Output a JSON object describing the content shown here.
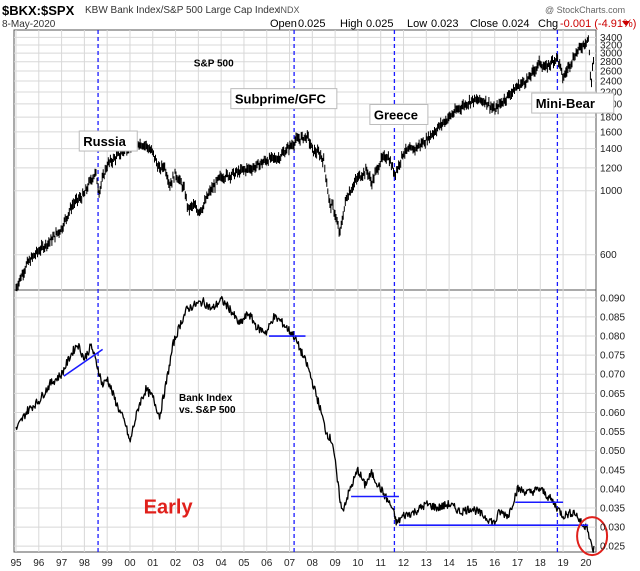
{
  "header": {
    "symbol": "$BKX:$SPX",
    "name": "KBW Bank Index/S&P 500 Large Cap Index",
    "exchange": "INDX",
    "date": "8-May-2020",
    "open_label": "Open",
    "open": "0.025",
    "high_label": "High",
    "high": "0.025",
    "low_label": "Low",
    "low": "0.023",
    "close_label": "Close",
    "close": "0.024",
    "chg_label": "Chg",
    "chg": "-0.001 (-4.91%)",
    "watermark": "@ StockCharts.com"
  },
  "colors": {
    "price": "#000000",
    "event_line": "#1a1aff",
    "trend_line": "#1a1aff",
    "annotation_red": "#e0201b",
    "grid": "#d8d8d8"
  },
  "chart_data": [
    {
      "type": "line",
      "panel": "top",
      "title": "S&P 500",
      "scale": "log",
      "xlim": [
        1995,
        2020.4
      ],
      "ylim": [
        460,
        3550
      ],
      "y_ticks": [
        600,
        1000,
        1200,
        1400,
        1600,
        1800,
        2000,
        2200,
        2400,
        2600,
        2800,
        3000,
        3200,
        3400
      ],
      "x": [
        1995.0,
        1995.5,
        1996.0,
        1996.5,
        1997.0,
        1997.5,
        1998.0,
        1998.3,
        1998.5,
        1998.65,
        1998.8,
        1999.0,
        1999.5,
        2000.0,
        2000.25,
        2000.7,
        2001.0,
        2001.3,
        2001.5,
        2001.75,
        2002.0,
        2002.4,
        2002.55,
        2002.8,
        2003.0,
        2003.2,
        2003.5,
        2004.0,
        2004.5,
        2005.0,
        2005.5,
        2006.0,
        2006.5,
        2007.0,
        2007.3,
        2007.6,
        2007.8,
        2008.0,
        2008.3,
        2008.5,
        2008.75,
        2008.9,
        2009.0,
        2009.2,
        2009.5,
        2010.0,
        2010.4,
        2010.6,
        2011.0,
        2011.3,
        2011.6,
        2011.75,
        2012.0,
        2012.5,
        2013.0,
        2013.5,
        2014.0,
        2014.5,
        2015.0,
        2015.6,
        2016.0,
        2016.5,
        2017.0,
        2017.5,
        2018.0,
        2018.2,
        2018.5,
        2018.75,
        2019.0,
        2019.5,
        2020.0,
        2020.12,
        2020.22,
        2020.3,
        2020.36
      ],
      "values": [
        460,
        560,
        620,
        670,
        740,
        900,
        970,
        1100,
        1150,
        990,
        1100,
        1230,
        1330,
        1430,
        1480,
        1440,
        1350,
        1180,
        1230,
        1050,
        1150,
        1000,
        860,
        890,
        850,
        880,
        990,
        1120,
        1140,
        1180,
        1210,
        1280,
        1300,
        1420,
        1500,
        1530,
        1540,
        1380,
        1350,
        1270,
        900,
        880,
        830,
        700,
        950,
        1110,
        1180,
        1060,
        1270,
        1330,
        1150,
        1200,
        1360,
        1400,
        1500,
        1650,
        1800,
        1950,
        2060,
        2050,
        1900,
        2100,
        2300,
        2450,
        2800,
        2650,
        2800,
        2900,
        2450,
        2950,
        3300,
        3380,
        2250,
        2750,
        2900
      ],
      "annotations": [
        {
          "label": "S&P 500",
          "year": 2002.8,
          "value": 2700
        },
        {
          "label": "Russia",
          "year": 1997.95,
          "value": 1440
        },
        {
          "label": "Subprime/GFC",
          "year": 2004.6,
          "value": 2020
        },
        {
          "label": "Greece",
          "year": 2010.7,
          "value": 1780
        },
        {
          "label": "Mini-Bear",
          "year": 2017.8,
          "value": 1950
        }
      ]
    },
    {
      "type": "line",
      "panel": "bottom",
      "title": "Bank Index vs. S&P 500",
      "title_lines": [
        "Bank Index",
        "vs. S&P 500"
      ],
      "xlim": [
        1995,
        2020.4
      ],
      "ylim": [
        0.024,
        0.091
      ],
      "x_ticks": [
        "95",
        "96",
        "97",
        "98",
        "99",
        "00",
        "01",
        "02",
        "03",
        "04",
        "05",
        "06",
        "07",
        "08",
        "09",
        "10",
        "11",
        "12",
        "13",
        "14",
        "15",
        "16",
        "17",
        "18",
        "19",
        "20"
      ],
      "y_ticks": [
        0.025,
        0.03,
        0.035,
        0.04,
        0.045,
        0.05,
        0.055,
        0.06,
        0.065,
        0.07,
        0.075,
        0.08,
        0.085,
        0.09
      ],
      "x": [
        1995.0,
        1995.5,
        1996.0,
        1996.5,
        1997.0,
        1997.4,
        1997.7,
        1998.0,
        1998.3,
        1998.6,
        1998.8,
        1999.0,
        1999.3,
        1999.5,
        1999.8,
        2000.0,
        2000.1,
        2000.4,
        2000.7,
        2001.0,
        2001.3,
        2001.6,
        2001.9,
        2002.2,
        2002.5,
        2002.8,
        2003.2,
        2003.6,
        2004.0,
        2004.4,
        2004.8,
        2005.2,
        2005.6,
        2006.0,
        2006.3,
        2006.6,
        2006.9,
        2007.2,
        2007.5,
        2007.8,
        2008.0,
        2008.3,
        2008.6,
        2008.9,
        2009.1,
        2009.3,
        2009.6,
        2010.0,
        2010.3,
        2010.6,
        2011.0,
        2011.5,
        2011.7,
        2012.0,
        2012.5,
        2013.0,
        2013.5,
        2014.0,
        2014.5,
        2015.0,
        2015.5,
        2016.0,
        2016.2,
        2016.6,
        2017.0,
        2017.5,
        2018.0,
        2018.5,
        2019.0,
        2019.5,
        2019.9,
        2020.05,
        2020.15,
        2020.3,
        2020.36
      ],
      "values": [
        0.0555,
        0.0605,
        0.063,
        0.0675,
        0.07,
        0.075,
        0.078,
        0.074,
        0.0775,
        0.0715,
        0.067,
        0.069,
        0.064,
        0.061,
        0.057,
        0.052,
        0.055,
        0.062,
        0.066,
        0.064,
        0.059,
        0.068,
        0.078,
        0.083,
        0.087,
        0.088,
        0.089,
        0.087,
        0.0895,
        0.087,
        0.083,
        0.086,
        0.082,
        0.081,
        0.085,
        0.084,
        0.082,
        0.08,
        0.076,
        0.072,
        0.068,
        0.062,
        0.055,
        0.052,
        0.042,
        0.034,
        0.039,
        0.045,
        0.041,
        0.044,
        0.04,
        0.035,
        0.031,
        0.033,
        0.034,
        0.036,
        0.035,
        0.036,
        0.034,
        0.035,
        0.033,
        0.031,
        0.034,
        0.033,
        0.04,
        0.039,
        0.04,
        0.037,
        0.033,
        0.034,
        0.03,
        0.031,
        0.027,
        0.024,
        0.0245
      ],
      "hlines": [
        {
          "x1": 2006.1,
          "x2": 2007.7,
          "value": 0.08
        },
        {
          "x1": 2009.7,
          "x2": 2011.8,
          "value": 0.038
        },
        {
          "x1": 2011.8,
          "x2": 2020.1,
          "value": 0.0305
        },
        {
          "x1": 2016.9,
          "x2": 2019.0,
          "value": 0.0365
        }
      ],
      "trendline": {
        "x1": 1997.1,
        "y1": 0.0695,
        "x2": 1998.8,
        "y2": 0.0765
      },
      "annotation": {
        "label": "Early",
        "year": 2000.6,
        "value": 0.0335
      }
    }
  ],
  "event_lines": [
    1998.6,
    2007.2,
    2011.6,
    2018.75
  ]
}
